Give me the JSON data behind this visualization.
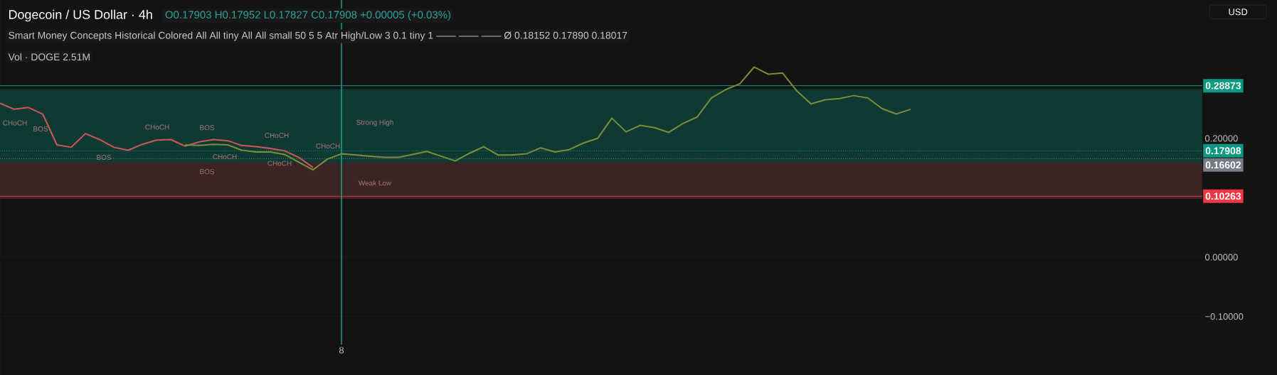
{
  "chart_data": {
    "type": "line",
    "title": "Dogecoin / US Dollar · 4h",
    "subtitle": "O0.17903 H0.17952 L0.17827 C0.17908 +0.00005 (+0.03%)",
    "ylabel": "USD",
    "categories": [
      null,
      null,
      null,
      null,
      null,
      null,
      null,
      null,
      null,
      null,
      null,
      null,
      null,
      null,
      null,
      null,
      null,
      null,
      null,
      null,
      null,
      null,
      null,
      null,
      "8",
      null,
      null,
      null,
      null,
      null,
      null,
      null,
      null,
      null,
      null,
      null,
      null,
      null,
      null,
      null,
      null,
      null,
      null,
      null,
      null,
      null,
      null,
      null,
      null,
      null,
      null,
      null,
      null,
      null,
      null,
      null,
      null,
      null,
      null,
      null,
      null,
      null,
      null,
      null,
      null,
      null,
      null,
      null,
      null,
      null,
      null,
      null,
      null,
      null,
      null,
      null,
      null,
      null,
      null,
      null,
      null,
      null,
      null,
      null,
      null
    ],
    "ylim": [
      -0.147,
      0.433
    ],
    "yticks": [
      {
        "value": -0.1,
        "label": "−0.10000"
      },
      {
        "value": 0,
        "label": "0.00000"
      },
      {
        "value": 0.2,
        "label": "0.20000"
      }
    ],
    "grid": "y",
    "series": [
      {
        "color": "#d1565a",
        "values": [
          0.259,
          0.249,
          0.252,
          0.241,
          0.189,
          0.185,
          0.208,
          0.198,
          0.185,
          0.18,
          0.19,
          0.197,
          0.198,
          0.187,
          0.194,
          0.198,
          0.196,
          0.188,
          0.186,
          0.183,
          0.179,
          0.168,
          0.151,
          null,
          null,
          null,
          null,
          null,
          null,
          null,
          null,
          null,
          null,
          null,
          null,
          null,
          null,
          null,
          null,
          null,
          null,
          null,
          null,
          null,
          null,
          null,
          null,
          null,
          null,
          null,
          null,
          null,
          null,
          null,
          null,
          null,
          null,
          null,
          null,
          null,
          null,
          null,
          null,
          null,
          null,
          null,
          null,
          null,
          null,
          null,
          null,
          null,
          null,
          null,
          null,
          null,
          null,
          null,
          null,
          null,
          null,
          null,
          null,
          null,
          null
        ]
      },
      {
        "color": "#7d8c3a",
        "values": [
          null,
          null,
          null,
          null,
          null,
          null,
          null,
          null,
          null,
          null,
          null,
          null,
          null,
          0.189,
          0.188,
          0.19,
          0.189,
          0.18,
          0.177,
          0.177,
          0.173,
          0.16,
          0.147,
          0.165,
          0.174,
          0.172,
          0.17,
          0.168,
          0.168,
          0.173,
          0.178,
          0.17,
          0.162,
          0.175,
          0.186,
          0.172,
          0.172,
          0.174,
          0.184,
          0.177,
          0.181,
          0.192,
          0.2,
          0.234,
          0.211,
          0.222,
          0.218,
          0.21,
          0.225,
          0.236,
          0.268,
          0.282,
          0.292,
          0.32,
          0.308,
          0.31,
          0.28,
          0.258,
          0.265,
          0.267,
          0.272,
          0.268,
          0.25,
          0.241,
          0.249,
          null,
          null,
          null,
          null,
          null,
          null,
          null,
          null,
          null,
          null,
          null,
          null,
          null,
          null,
          null,
          null,
          null,
          null,
          null,
          null
        ]
      }
    ],
    "bands": [
      {
        "axis": "y",
        "from": 0.159,
        "to": 0.283,
        "color": "#0e3a33"
      },
      {
        "axis": "y",
        "from": 0.098,
        "to": 0.159,
        "color": "#3a2424"
      }
    ],
    "ref_lines": [
      {
        "axis": "x",
        "value": "8",
        "color": "#22c1a8"
      },
      {
        "axis": "y",
        "value": 0.28873,
        "label": "0.28873",
        "color": "#089981"
      },
      {
        "axis": "y",
        "value": 0.17908,
        "label": "0.17908",
        "color": "#089981",
        "line_style": "dotted"
      },
      {
        "axis": "y",
        "value": 0.16602,
        "label": "0.16602",
        "color": "#787b86",
        "line_style": "dotted"
      },
      {
        "axis": "y",
        "value": 0.10263,
        "label": "0.10263",
        "color": "#f23645"
      }
    ],
    "annotations": [
      "Smart Money Concepts Historical Colored All All tiny All All small 50 5 5 Atr High/Low 3 0.1 tiny 1 —— —— —— Ø 0.18152 0.17890 0.18017",
      "Vol · DOGE 2.51M",
      "CHoCH",
      "BOS",
      "CHoCH",
      "BOS",
      "BOS",
      "CHoCH",
      "CHoCH",
      "BOS",
      "CHoCH",
      "CHoCH",
      "Strong High",
      "Weak Low"
    ]
  }
}
